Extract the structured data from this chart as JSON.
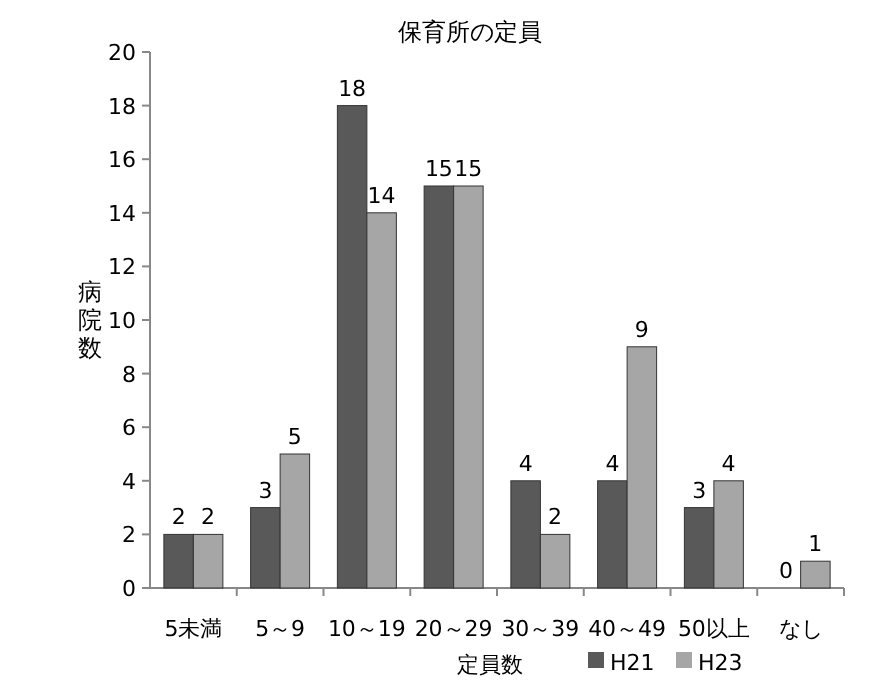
{
  "chart_data": {
    "type": "bar",
    "title": "保育所の定員",
    "xlabel": "定員数",
    "ylabel": "病院数",
    "categories": [
      "5未満",
      "5～9",
      "10～19",
      "20～29",
      "30～39",
      "40～49",
      "50以上",
      "なし"
    ],
    "series": [
      {
        "name": "H21",
        "color": "#595959",
        "values": [
          2,
          3,
          18,
          15,
          4,
          4,
          3,
          0
        ]
      },
      {
        "name": "H23",
        "color": "#a6a6a6",
        "values": [
          2,
          5,
          14,
          15,
          2,
          9,
          4,
          1
        ]
      }
    ],
    "ylim": [
      0,
      20
    ],
    "yticks": [
      0,
      2,
      4,
      6,
      8,
      10,
      12,
      14,
      16,
      18,
      20
    ],
    "data_labels": true,
    "legend": "bottom",
    "grid": false
  }
}
